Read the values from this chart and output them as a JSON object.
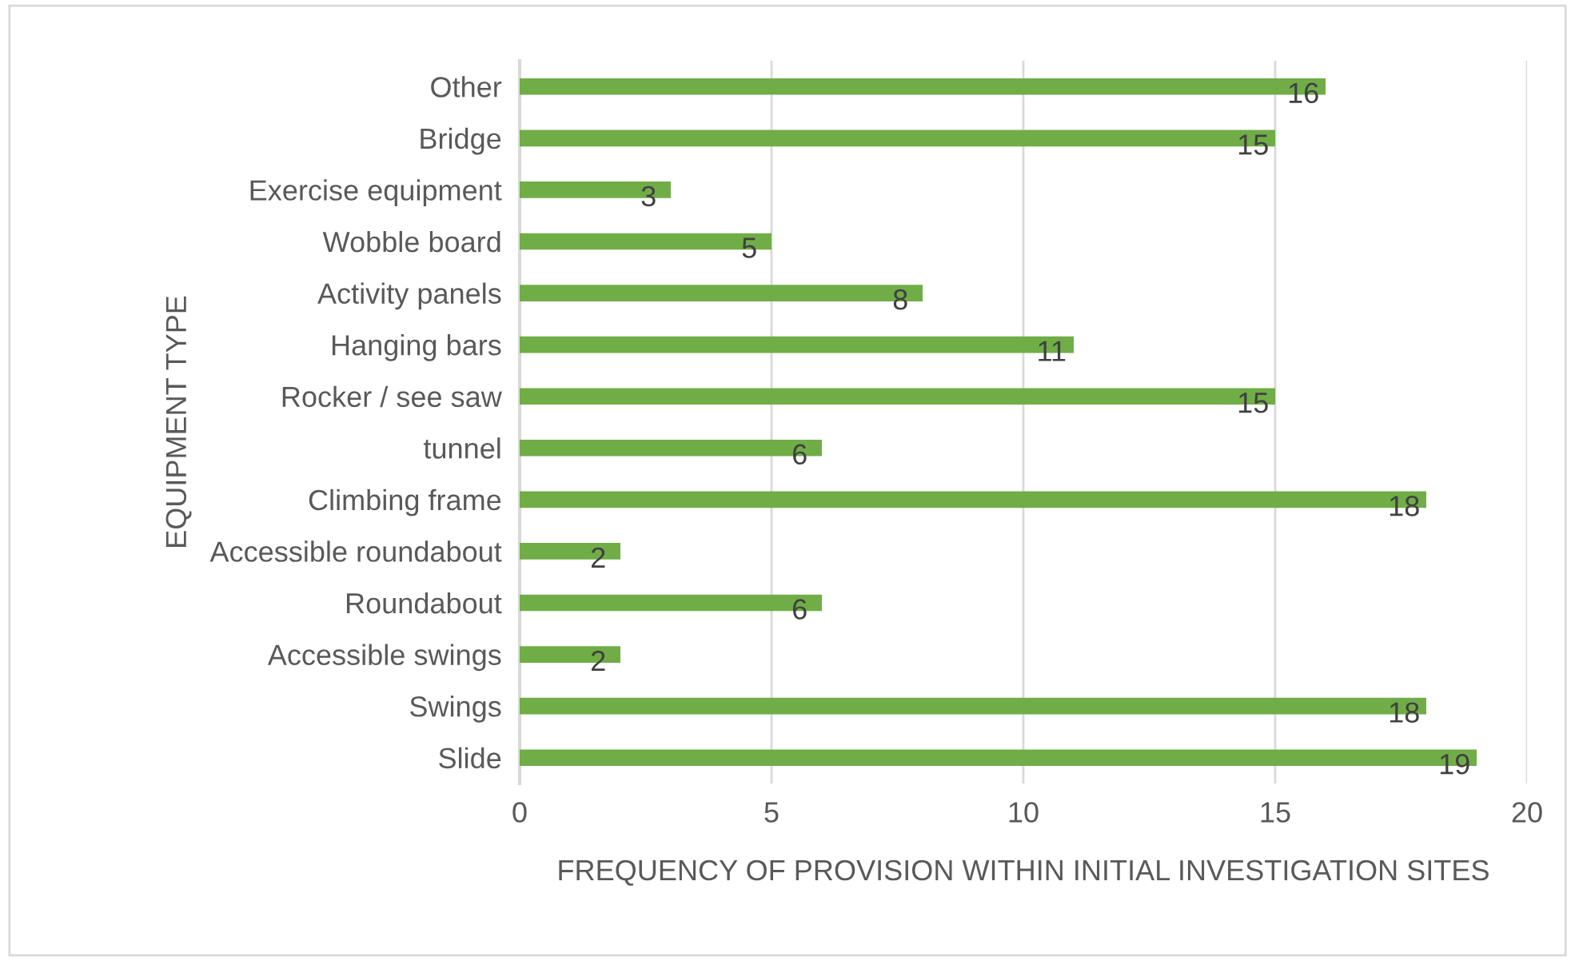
{
  "chart_data": {
    "type": "bar",
    "orientation": "horizontal",
    "xlabel": "FREQUENCY OF PROVISION WITHIN INITIAL INVESTIGATION SITES",
    "ylabel": "EQUIPMENT TYPE",
    "categories": [
      "Other",
      "Bridge",
      "Exercise equipment",
      "Wobble board",
      "Activity panels",
      "Hanging bars",
      "Rocker / see saw",
      "tunnel",
      "Climbing frame",
      "Accessible roundabout",
      "Roundabout",
      "Accessible swings",
      "Swings",
      "Slide"
    ],
    "values": [
      16,
      15,
      3,
      5,
      8,
      11,
      15,
      6,
      18,
      2,
      6,
      2,
      18,
      19
    ],
    "color": "#70ad47",
    "xlim": [
      0,
      20
    ],
    "xticks": [
      0,
      5,
      10,
      15,
      20
    ],
    "grid": "x",
    "data_labels": true
  }
}
